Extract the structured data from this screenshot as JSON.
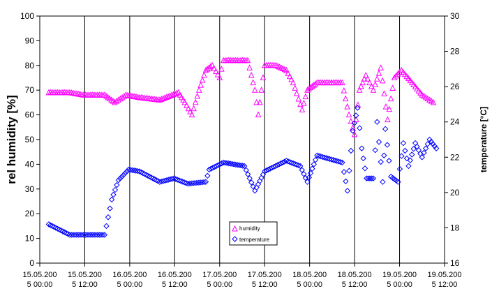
{
  "chart_data": {
    "type": "line",
    "ylabel": "rel humidity [%]",
    "y2label": "temperature [°C]",
    "ylim": [
      0,
      100
    ],
    "y2lim": [
      16,
      30
    ],
    "yticks": [
      "0",
      "10",
      "20",
      "30",
      "40",
      "50",
      "60",
      "70",
      "80",
      "90",
      "100"
    ],
    "y2ticks": [
      "16",
      "18",
      "20",
      "22",
      "24",
      "26",
      "28",
      "30"
    ],
    "xlim_hours": [
      0,
      108
    ],
    "xticks": [
      [
        "15.05.200",
        "5 00:00"
      ],
      [
        "15.05.200",
        "5 12:00"
      ],
      [
        "16.05.200",
        "5 00:00"
      ],
      [
        "16.05.200",
        "5 12:00"
      ],
      [
        "17.05.200",
        "5 00:00"
      ],
      [
        "17.05.200",
        "5 12:00"
      ],
      [
        "18.05.200",
        "5 00:00"
      ],
      [
        "18.05.200",
        "5 12:00"
      ],
      [
        "19.05.200",
        "5 00:00"
      ],
      [
        "19.05.200",
        "5 12:00"
      ]
    ],
    "grid": "vertical",
    "legend": {
      "position": "center-bottom",
      "entries": [
        "humidity",
        "temperature"
      ]
    },
    "series": [
      {
        "name": "humidity",
        "axis": "left",
        "color": "#FF00FF",
        "marker": "triangle",
        "x": [
          2.4,
          8,
          11.7,
          17.3,
          20,
          23,
          26.6,
          32,
          37,
          38.7,
          40.6,
          42.5,
          44.3,
          46,
          48,
          49,
          52.7,
          55.5,
          57.4,
          58.3,
          60,
          63,
          65.8,
          67.6,
          70,
          71.4,
          74,
          80.7,
          82.5,
          84,
          85.3,
          87,
          89,
          91,
          92.8,
          94.6,
          96.5,
          99.3,
          102,
          105
        ],
        "y": [
          69,
          69,
          68,
          68,
          65,
          68,
          67,
          66,
          69,
          65,
          60,
          70,
          78,
          80,
          75,
          82,
          82,
          82,
          70,
          60,
          80,
          80,
          78,
          73,
          62,
          70,
          73,
          73,
          60,
          52,
          70,
          76,
          70,
          79,
          58,
          75,
          78,
          73,
          68,
          65
        ]
      },
      {
        "name": "temperature",
        "axis": "right",
        "color": "#0000FF",
        "marker": "diamond",
        "x": [
          2.4,
          8,
          11.7,
          17.3,
          19.2,
          21,
          23.7,
          26.6,
          32,
          35.8,
          39.5,
          44.3,
          45.2,
          49,
          54.6,
          57.4,
          60,
          65.8,
          69.5,
          71.4,
          74,
          80.7,
          82.1,
          83.5,
          84.8,
          85.9,
          87.2,
          89,
          90,
          91.5,
          92.2,
          93.7,
          95.6,
          97,
          98.4,
          100.2,
          102,
          104,
          105.8
        ],
        "y": [
          18.2,
          17.6,
          17.6,
          17.6,
          19.6,
          20.7,
          21.3,
          21.2,
          20.6,
          20.8,
          20.5,
          20.6,
          21.3,
          21.7,
          21.5,
          20.1,
          21.2,
          21.8,
          21.5,
          20.6,
          22.1,
          21.7,
          20.1,
          23.5,
          24.8,
          22.5,
          20.8,
          20.8,
          24.0,
          20.6,
          23.6,
          20.9,
          20.6,
          22.8,
          21.5,
          22.8,
          22.0,
          23.0,
          22.5
        ]
      }
    ]
  }
}
